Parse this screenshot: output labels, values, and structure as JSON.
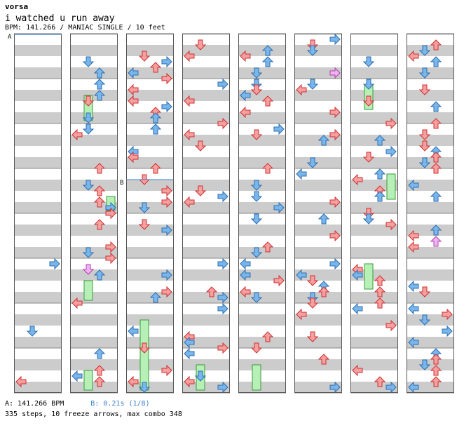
{
  "song": {
    "author": "vorsa",
    "title": "i watched u run away",
    "info": "BPM: 141.266 / MANIAC SINGLE / 10 feet"
  },
  "markers": {
    "a": "A",
    "b": "B"
  },
  "legend": {
    "a": "A: 141.266 BPM",
    "b": "B: 0.21s (1/8)"
  },
  "summary": "335 steps, 10 freeze arrows, max combo 348",
  "colors": {
    "red_note": "#f5a0a0",
    "blue_note": "#79b6ec",
    "pink_note": "#f0b3f0",
    "freeze": "#b7f0b7",
    "stripe": "#cccccc"
  }
}
